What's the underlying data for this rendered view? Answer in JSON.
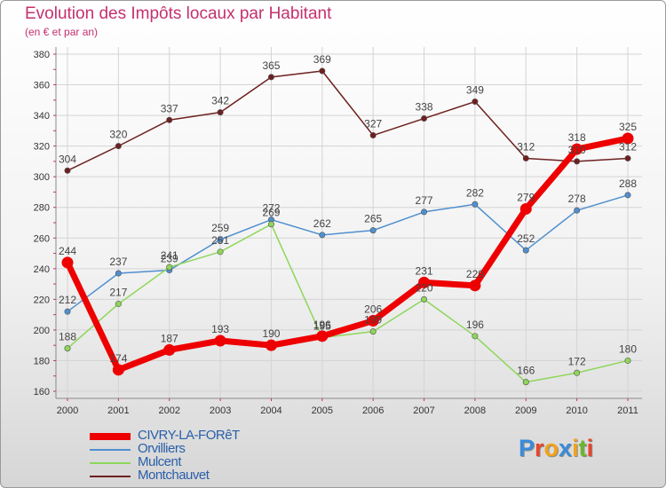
{
  "title": "Evolution des Impôts locaux par Habitant",
  "subtitle": "(en € et par an)",
  "logo": {
    "text": [
      "P",
      "r",
      "o",
      "x",
      "i",
      "t",
      "i"
    ],
    "colors": [
      "#3a8bd9",
      "#e8452c",
      "#f2a21b",
      "#3a8bd9",
      "#f2a21b",
      "#6bb52e",
      "#e8452c"
    ]
  },
  "chart_data": {
    "type": "line",
    "categories": [
      "2000",
      "2001",
      "2002",
      "2003",
      "2004",
      "2005",
      "2006",
      "2007",
      "2008",
      "2009",
      "2010",
      "2011"
    ],
    "ylim": [
      160,
      380
    ],
    "yticks": [
      160,
      180,
      200,
      220,
      240,
      260,
      280,
      300,
      320,
      340,
      360,
      380
    ],
    "series": [
      {
        "name": "Montchauvet",
        "color": "#6e2020",
        "values": [
          304,
          320,
          337,
          342,
          365,
          369,
          327,
          338,
          349,
          312,
          310,
          312
        ],
        "labels": [
          "304",
          "320",
          "337",
          "342",
          "365",
          "369",
          "327",
          "338",
          "349",
          "312",
          "310",
          "312"
        ]
      },
      {
        "name": "Orvilliers",
        "color": "#4f8fcf",
        "values": [
          212,
          237,
          239,
          259,
          272,
          262,
          265,
          277,
          282,
          252,
          278,
          288
        ],
        "labels": [
          "212",
          "237",
          "239",
          "259",
          "272",
          "262",
          "265",
          "277",
          "282",
          "252",
          "278",
          "288"
        ]
      },
      {
        "name": "Mulcent",
        "color": "#8ed65a",
        "values": [
          188,
          217,
          241,
          251,
          269,
          195,
          199,
          220,
          196,
          166,
          172,
          180
        ],
        "labels": [
          "188",
          "217",
          "241",
          "251",
          "269",
          "195",
          "199",
          "220",
          "196",
          "166",
          "172",
          "180"
        ]
      },
      {
        "name": "CIVRY-LA-FORêT",
        "color": "#ee0000",
        "values": [
          244,
          174,
          187,
          193,
          190,
          196,
          206,
          231,
          229,
          279,
          318,
          325
        ],
        "labels": [
          "244",
          "174",
          "187",
          "193",
          "190",
          "196",
          "206",
          "231",
          "229",
          "279",
          "318",
          "325"
        ]
      }
    ],
    "legend": [
      "CIVRY-LA-FORêT",
      "Orvilliers",
      "Mulcent",
      "Montchauvet"
    ]
  }
}
